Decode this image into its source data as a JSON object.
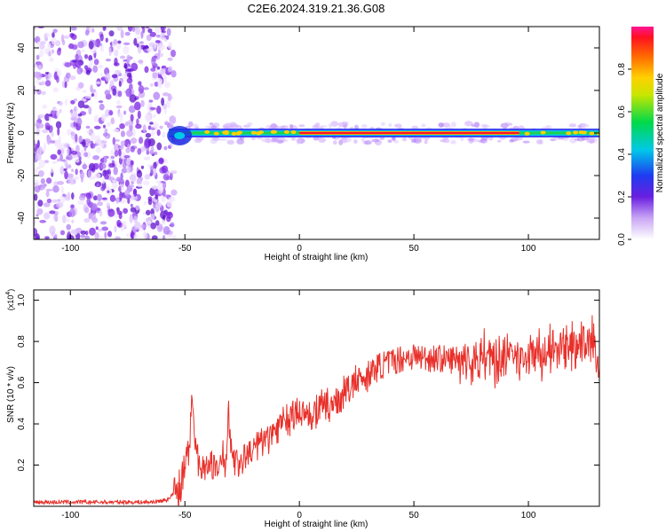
{
  "title": "C2E6.2024.319.21.36.G08",
  "colors": {
    "snr_line": "#e8302a",
    "frame": "#000000"
  },
  "chart_data": [
    {
      "type": "heatmap",
      "title": "C2E6.2024.319.21.36.G08",
      "xlabel": "Height of straight line (km)",
      "ylabel": "Frequency (Hz)",
      "xlim": [
        -116,
        131
      ],
      "ylim": [
        -50,
        50
      ],
      "xticks": [
        -100,
        -50,
        0,
        50,
        100
      ],
      "yticks": [
        -40,
        -20,
        0,
        20,
        40
      ],
      "grid": false,
      "colorbar": {
        "label": "Normalized spectral amplitude",
        "range": [
          0.0,
          1.0
        ],
        "ticks": [
          0.0,
          0.2,
          0.4,
          0.6,
          0.8
        ],
        "tick_labels": [
          "0.0",
          "0.2",
          "0.4",
          "0.6",
          "0.8"
        ],
        "colormap": "rainbow (white-violet-blue-cyan-green-yellow-orange-red-magenta)"
      },
      "features": {
        "noise_region_x": [
          -116,
          -57
        ],
        "signal_frequency_hz": 0,
        "signal_start_x": -57,
        "strong_line_x": [
          0,
          96
        ]
      }
    },
    {
      "type": "line",
      "xlabel": "Height of straight line (km)",
      "ylabel": "SNR (10 * v/v)",
      "scale_label": "(x10",
      "scale_exponent": "4",
      "scale_close": ")",
      "xlim": [
        -116,
        131
      ],
      "ylim": [
        0,
        1.05
      ],
      "xticks": [
        -100,
        -50,
        0,
        50,
        100
      ],
      "yticks": [
        0.2,
        0.4,
        0.6,
        0.8,
        1.0
      ],
      "ytick_labels": [
        "0.2",
        "0.4",
        "0.6",
        "0.8",
        "1.0"
      ],
      "grid": false,
      "series": [
        {
          "color": "#e8302a",
          "x": [
            -116,
            -100,
            -80,
            -65,
            -58,
            -55,
            -52,
            -50,
            -48,
            -47,
            -46,
            -45,
            -44,
            -42,
            -40,
            -38,
            -36,
            -34,
            -32,
            -31,
            -30,
            -28,
            -26,
            -24,
            -22,
            -20,
            -15,
            -10,
            -5,
            0,
            5,
            10,
            15,
            20,
            25,
            30,
            35,
            40,
            45,
            50,
            55,
            60,
            65,
            70,
            75,
            80,
            85,
            90,
            95,
            100,
            105,
            110,
            115,
            120,
            125,
            128,
            131
          ],
          "y": [
            0.02,
            0.02,
            0.02,
            0.02,
            0.03,
            0.06,
            0.1,
            0.18,
            0.3,
            0.58,
            0.4,
            0.25,
            0.22,
            0.2,
            0.18,
            0.2,
            0.15,
            0.25,
            0.2,
            0.5,
            0.3,
            0.22,
            0.2,
            0.24,
            0.25,
            0.28,
            0.32,
            0.38,
            0.42,
            0.45,
            0.45,
            0.48,
            0.5,
            0.55,
            0.6,
            0.64,
            0.68,
            0.7,
            0.72,
            0.73,
            0.72,
            0.72,
            0.71,
            0.72,
            0.7,
            0.72,
            0.71,
            0.72,
            0.72,
            0.73,
            0.74,
            0.75,
            0.76,
            0.77,
            0.78,
            0.85,
            0.6
          ]
        }
      ]
    }
  ]
}
